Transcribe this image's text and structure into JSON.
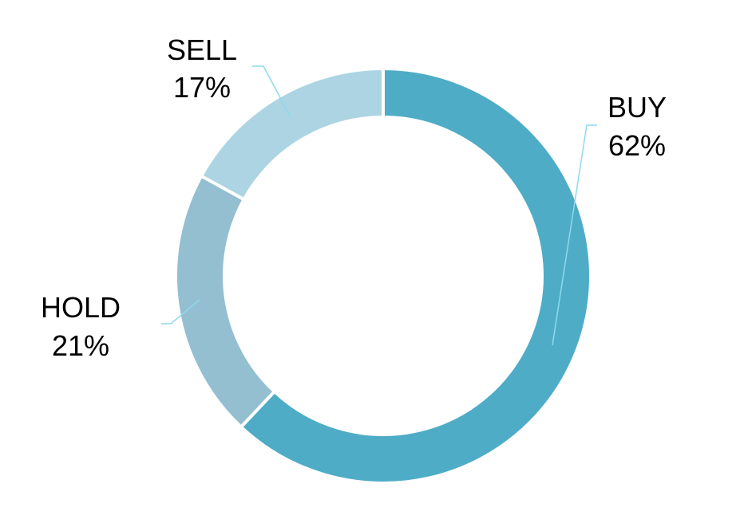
{
  "chart_data": {
    "type": "pie",
    "donut": true,
    "title": "",
    "categories": [
      "BUY",
      "HOLD",
      "SELL"
    ],
    "values": [
      62,
      21,
      17
    ],
    "value_labels": [
      "62%",
      "21%",
      "17%"
    ],
    "colors": [
      "#4eacc6",
      "#94bfd1",
      "#acd4e2"
    ],
    "leader_line_color": "#8fd9ec",
    "start": "12 o'clock",
    "direction": "clockwise"
  }
}
